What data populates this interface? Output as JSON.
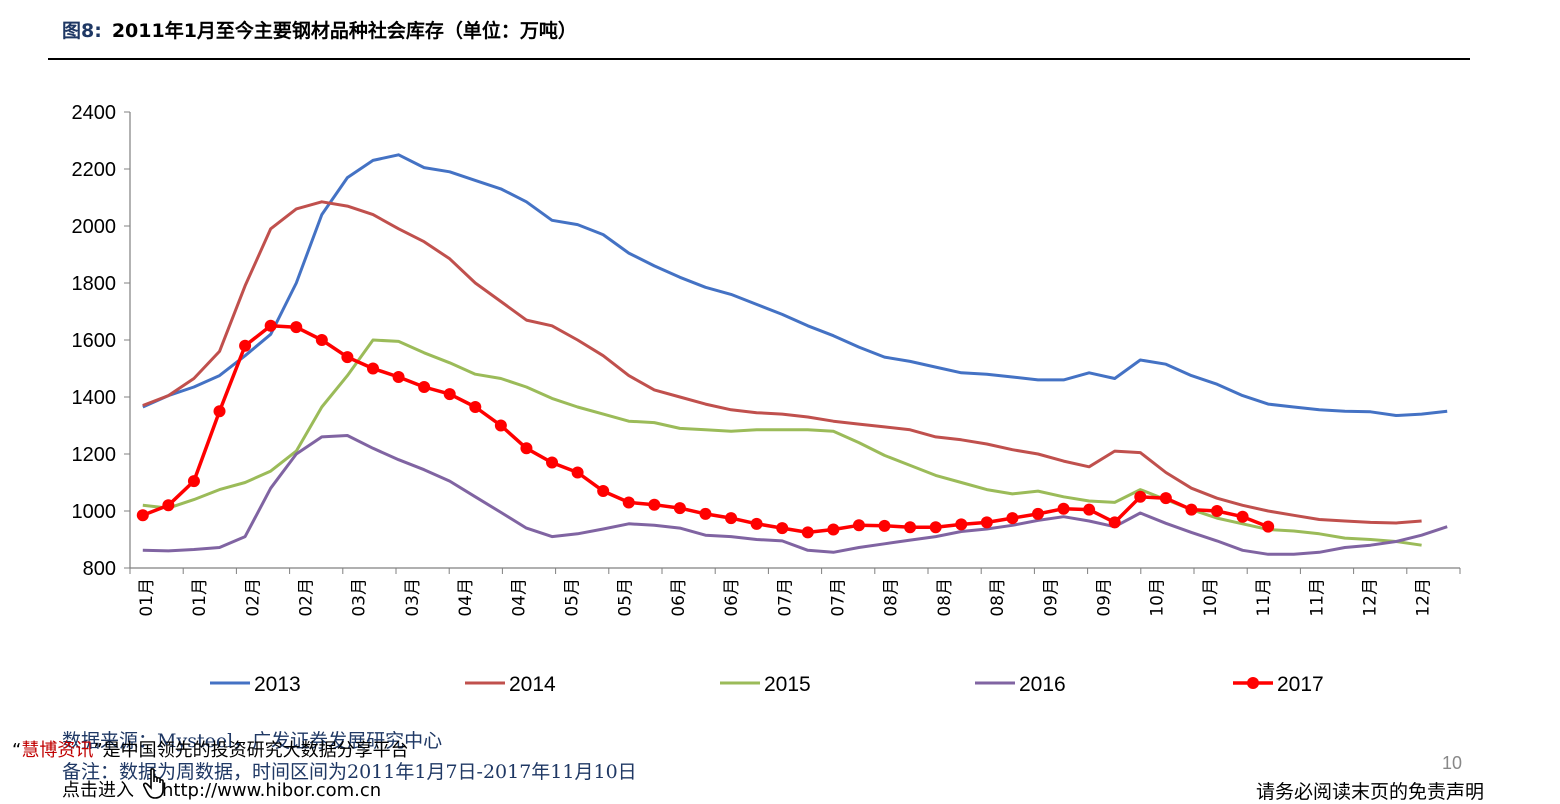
{
  "header": {
    "figure_label": "图8:",
    "title": "2011年1月至今主要钢材品种社会库存（单位：万吨）"
  },
  "footer": {
    "source": "数据来源：Mysteel，广发证券发展研究中心",
    "note": "备注：数据为周数据，时间区间为2011年1月7日-2017年11月10日",
    "promo_brand": "慧博资讯",
    "promo_text": "是中国领先的投资研究大数据分享平台",
    "promo_open_quote": "“",
    "promo_close_quote": "”",
    "link_prefix": "点击进入",
    "link_url": "http://www.hibor.com.cn",
    "page_number": "10",
    "disclaimer": "请务必阅读末页的免责声明"
  },
  "icons": {
    "cursor": "hand-pointer-icon"
  },
  "chart_data": {
    "type": "line",
    "title": "",
    "xlabel": "",
    "ylabel": "",
    "ylim": [
      800,
      2400
    ],
    "yticks": [
      800,
      1000,
      1200,
      1400,
      1600,
      1800,
      2000,
      2200,
      2400
    ],
    "grid": false,
    "legend_position": "bottom",
    "x_tick_labels": [
      "01月",
      "01月",
      "02月",
      "02月",
      "03月",
      "03月",
      "04月",
      "04月",
      "05月",
      "05月",
      "06月",
      "06月",
      "07月",
      "07月",
      "08月",
      "08月",
      "08月",
      "09月",
      "09月",
      "10月",
      "10月",
      "11月",
      "11月",
      "12月",
      "12月"
    ],
    "x_count": 52,
    "series": [
      {
        "name": "2013",
        "color": "#4472c4",
        "markers": false,
        "values": [
          1365,
          1405,
          1435,
          1475,
          1545,
          1620,
          1800,
          2040,
          2170,
          2230,
          2250,
          2205,
          2190,
          2160,
          2130,
          2085,
          2020,
          2005,
          1970,
          1905,
          1860,
          1820,
          1785,
          1760,
          1725,
          1690,
          1650,
          1615,
          1575,
          1540,
          1525,
          1505,
          1485,
          1480,
          1470,
          1460,
          1460,
          1485,
          1465,
          1530,
          1515,
          1475,
          1445,
          1405,
          1375,
          1365,
          1355,
          1350,
          1348,
          1335,
          1340,
          1350
        ]
      },
      {
        "name": "2014",
        "color": "#c0504d",
        "markers": false,
        "values": [
          1370,
          1405,
          1465,
          1560,
          1790,
          1990,
          2060,
          2085,
          2070,
          2040,
          1990,
          1945,
          1885,
          1800,
          1735,
          1670,
          1650,
          1600,
          1545,
          1475,
          1425,
          1400,
          1375,
          1355,
          1345,
          1340,
          1330,
          1315,
          1305,
          1295,
          1285,
          1260,
          1250,
          1235,
          1215,
          1200,
          1175,
          1155,
          1210,
          1205,
          1135,
          1080,
          1045,
          1020,
          1000,
          985,
          970,
          965,
          960,
          958,
          965
        ]
      },
      {
        "name": "2015",
        "color": "#9bbb59",
        "markers": false,
        "values": [
          1020,
          1010,
          1040,
          1075,
          1100,
          1140,
          1210,
          1365,
          1475,
          1600,
          1595,
          1555,
          1520,
          1480,
          1465,
          1435,
          1395,
          1365,
          1340,
          1315,
          1310,
          1290,
          1285,
          1280,
          1285,
          1285,
          1285,
          1280,
          1240,
          1195,
          1160,
          1125,
          1100,
          1075,
          1060,
          1070,
          1050,
          1035,
          1030,
          1075,
          1040,
          1005,
          975,
          955,
          935,
          930,
          920,
          905,
          900,
          893,
          880
        ]
      },
      {
        "name": "2016",
        "color": "#8064a2",
        "markers": false,
        "values": [
          862,
          860,
          865,
          872,
          910,
          1080,
          1200,
          1260,
          1265,
          1220,
          1180,
          1145,
          1105,
          1050,
          995,
          940,
          910,
          920,
          937,
          955,
          950,
          940,
          915,
          910,
          900,
          895,
          862,
          855,
          872,
          885,
          898,
          910,
          928,
          937,
          950,
          967,
          980,
          965,
          945,
          993,
          957,
          925,
          895,
          862,
          848,
          848,
          855,
          872,
          880,
          893,
          915,
          945
        ]
      },
      {
        "name": "2017",
        "color": "#ff0000",
        "markers": true,
        "values": [
          985,
          1020,
          1105,
          1350,
          1580,
          1650,
          1645,
          1600,
          1540,
          1500,
          1470,
          1435,
          1410,
          1365,
          1300,
          1220,
          1170,
          1135,
          1070,
          1030,
          1022,
          1010,
          990,
          975,
          955,
          940,
          925,
          935,
          950,
          948,
          943,
          943,
          953,
          960,
          975,
          990,
          1008,
          1005,
          960,
          1050,
          1045,
          1005,
          1000,
          980,
          945
        ]
      }
    ]
  }
}
